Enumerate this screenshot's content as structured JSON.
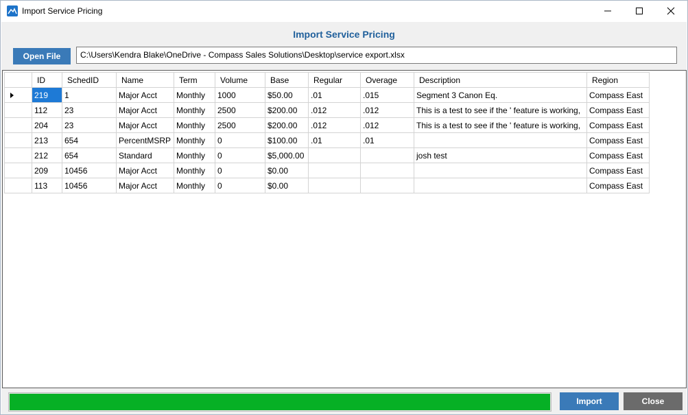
{
  "window": {
    "title": "Import Service Pricing",
    "icon": "mountain-app-icon",
    "controls": [
      "minimize-icon",
      "maximize-icon",
      "close-icon"
    ]
  },
  "dialog": {
    "heading": "Import Service Pricing",
    "heading_color": "#1f5f9b"
  },
  "file": {
    "open_label": "Open File",
    "path": "C:\\Users\\Kendra Blake\\OneDrive - Compass Sales Solutions\\Desktop\\service export.xlsx"
  },
  "grid": {
    "columns": [
      "ID",
      "SchedID",
      "Name",
      "Term",
      "Volume",
      "Base",
      "Regular",
      "Overage",
      "Description",
      "Region"
    ],
    "rows": [
      [
        "219",
        "1",
        "Major Acct",
        "Monthly",
        "1000",
        "$50.00",
        ".01",
        ".015",
        "Segment 3 Canon Eq.",
        "Compass East"
      ],
      [
        "112",
        "23",
        "Major Acct",
        "Monthly",
        "2500",
        "$200.00",
        ".012",
        ".012",
        "This is a test to see if the ' feature is working,",
        "Compass East"
      ],
      [
        "204",
        "23",
        "Major Acct",
        "Monthly",
        "2500",
        "$200.00",
        ".012",
        ".012",
        "This is a test to see if the ' feature is working,",
        "Compass East"
      ],
      [
        "213",
        "654",
        "PercentMSRP",
        "Monthly",
        "0",
        "$100.00",
        ".01",
        ".01",
        "",
        "Compass East"
      ],
      [
        "212",
        "654",
        "Standard",
        "Monthly",
        "0",
        "$5,000.00",
        "",
        "",
        "josh test",
        "Compass East"
      ],
      [
        "209",
        "10456",
        "Major Acct",
        "Monthly",
        "0",
        "$0.00",
        "",
        "",
        "",
        "Compass East"
      ],
      [
        "113",
        "10456",
        "Major Acct",
        "Monthly",
        "0",
        "$0.00",
        "",
        "",
        "",
        "Compass East"
      ]
    ],
    "current_row_indicator": "row-pointer-icon",
    "selection_color": "#1e7ad6"
  },
  "progress": {
    "value_percent": 100,
    "fill_color": "#06b025"
  },
  "actions": {
    "import_label": "Import",
    "close_label": "Close",
    "import_color": "#3a7ab8",
    "close_color": "#6b6b6b"
  }
}
